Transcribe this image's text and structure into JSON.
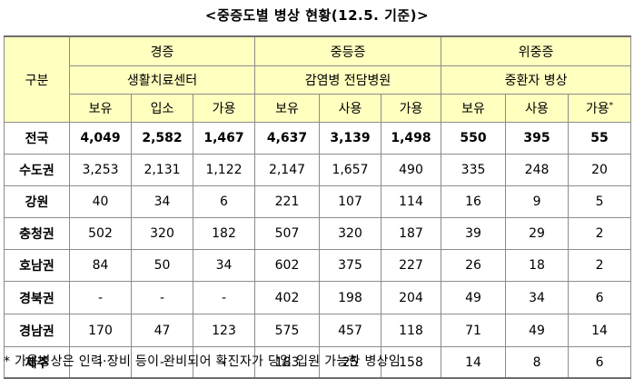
{
  "title": "<중증도별 병상 현황(12.5. 기준)>",
  "headers": {
    "region_col": "구분",
    "groups": [
      {
        "name": "경증",
        "facility": "생활치료센터",
        "cols": [
          "보유",
          "입소",
          "가용"
        ]
      },
      {
        "name": "중등증",
        "facility": "감염병 전담병원",
        "cols": [
          "보유",
          "사용",
          "가용"
        ]
      },
      {
        "name": "위중증",
        "facility": "중환자 병상",
        "cols": [
          "보유",
          "사용",
          "가용"
        ],
        "last_col_marker": "*"
      }
    ]
  },
  "rows": [
    {
      "region": "전국",
      "values": [
        "4,049",
        "2,582",
        "1,467",
        "4,637",
        "3,139",
        "1,498",
        "550",
        "395",
        "55"
      ]
    },
    {
      "region": "수도권",
      "values": [
        "3,253",
        "2,131",
        "1,122",
        "2,147",
        "1,657",
        "490",
        "335",
        "248",
        "20"
      ]
    },
    {
      "region": "강원",
      "values": [
        "40",
        "34",
        "6",
        "221",
        "107",
        "114",
        "16",
        "9",
        "5"
      ]
    },
    {
      "region": "충청권",
      "values": [
        "502",
        "320",
        "182",
        "507",
        "320",
        "187",
        "39",
        "29",
        "2"
      ]
    },
    {
      "region": "호남권",
      "values": [
        "84",
        "50",
        "34",
        "602",
        "375",
        "227",
        "26",
        "18",
        "2"
      ]
    },
    {
      "region": "경북권",
      "values": [
        "-",
        "-",
        "-",
        "402",
        "198",
        "204",
        "49",
        "34",
        "6"
      ]
    },
    {
      "region": "경남권",
      "values": [
        "170",
        "47",
        "123",
        "575",
        "457",
        "118",
        "71",
        "49",
        "14"
      ]
    },
    {
      "region": "제주",
      "values": [
        "-",
        "-",
        "-",
        "183",
        "25",
        "158",
        "14",
        "8",
        "6"
      ]
    }
  ],
  "footnote": "* 가용병상은 인력·장비 등이 완비되어 확진자가 당일 입원 가능한 병상임"
}
